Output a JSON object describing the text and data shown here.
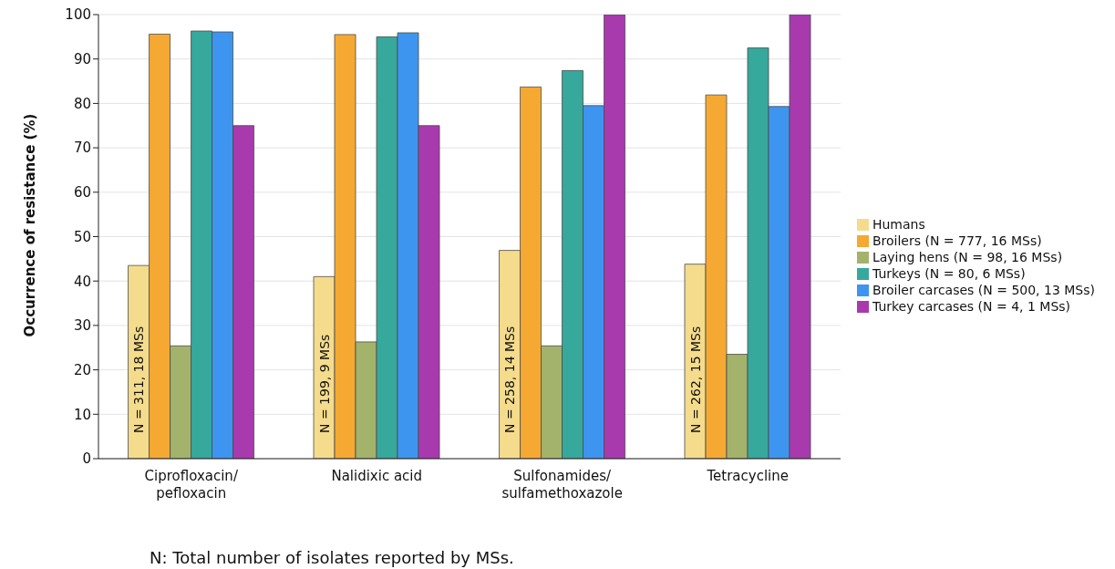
{
  "chart_data": {
    "type": "bar",
    "ylabel": "Occurrence of resistance (%)",
    "categories": [
      "Ciprofloxacin/pefloxacin",
      "Nalidixic acid",
      "Sulfonamides/sulfamethoxazole",
      "Tetracycline"
    ],
    "series": [
      {
        "name": "Humans",
        "color": "#f5dc8c",
        "values": [
          43.5,
          41,
          46.9,
          43.8
        ],
        "value_labels": [
          "N = 311, 18 MSs",
          "N = 199, 9 MSs",
          "N = 258, 14 MSs",
          "N = 262, 15 MSs"
        ]
      },
      {
        "name": "Broilers (N = 777, 16 MSs)",
        "color": "#f5a933",
        "values": [
          95.6,
          95.5,
          83.7,
          81.9
        ]
      },
      {
        "name": "Laying hens (N = 98, 16 MSs)",
        "color": "#a3b36b",
        "values": [
          25.4,
          26.3,
          25.4,
          23.5
        ]
      },
      {
        "name": "Turkeys (N = 80, 6 MSs)",
        "color": "#36a89c",
        "values": [
          96.3,
          95,
          87.4,
          92.5
        ]
      },
      {
        "name": "Broiler carcases (N = 500, 13 MSs)",
        "color": "#3d95f0",
        "values": [
          96.1,
          95.9,
          79.5,
          79.3
        ]
      },
      {
        "name": "Turkey carcases (N = 4, 1 MSs)",
        "color": "#a83aae",
        "values": [
          75,
          75,
          100,
          100
        ]
      }
    ],
    "ylim": [
      0,
      100
    ],
    "yticks": [
      0,
      10,
      20,
      30,
      40,
      50,
      60,
      70,
      80,
      90,
      100
    ],
    "grid": "y",
    "legend": "right",
    "annotations": [
      "N: Total number of isolates reported by MSs."
    ]
  }
}
